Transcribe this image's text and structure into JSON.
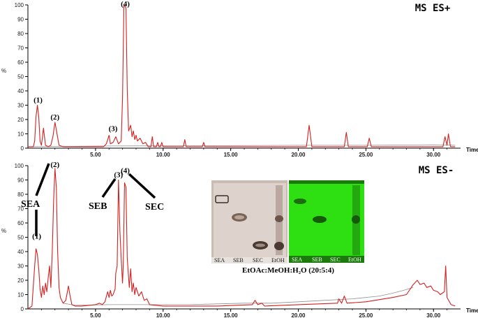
{
  "chart_data": [
    {
      "type": "line",
      "mode_label": "MS ES+",
      "xlabel": "Time",
      "ylabel": "%",
      "xlim": [
        0,
        32
      ],
      "ylim": [
        0,
        100
      ],
      "x_ticks": [
        "5.00",
        "10.00",
        "15.00",
        "20.00",
        "25.00",
        "30.00"
      ],
      "y_ticks": [
        "0",
        "10",
        "20",
        "30",
        "40",
        "50",
        "60",
        "70",
        "80",
        "90",
        "100"
      ],
      "peak_labels": [
        {
          "text": "(1)",
          "x": 0.75,
          "y": 30
        },
        {
          "text": "(2)",
          "x": 2.0,
          "y": 18
        },
        {
          "text": "(3)",
          "x": 6.3,
          "y": 10
        },
        {
          "text": "(4)",
          "x": 7.2,
          "y": 100
        }
      ],
      "series": [
        {
          "color": "#d42020",
          "points": [
            [
              0,
              1
            ],
            [
              0.4,
              1
            ],
            [
              0.5,
              5
            ],
            [
              0.6,
              22
            ],
            [
              0.7,
              30
            ],
            [
              0.8,
              22
            ],
            [
              0.9,
              5
            ],
            [
              1.0,
              2
            ],
            [
              1.15,
              14
            ],
            [
              1.3,
              2
            ],
            [
              1.5,
              1
            ],
            [
              1.7,
              2
            ],
            [
              1.85,
              8
            ],
            [
              2.0,
              18
            ],
            [
              2.15,
              10
            ],
            [
              2.3,
              2
            ],
            [
              2.6,
              1
            ],
            [
              4.0,
              1
            ],
            [
              5.6,
              1
            ],
            [
              5.8,
              3
            ],
            [
              6.0,
              9
            ],
            [
              6.1,
              3
            ],
            [
              6.3,
              4
            ],
            [
              6.5,
              8
            ],
            [
              6.7,
              3
            ],
            [
              6.9,
              5
            ],
            [
              7.0,
              35
            ],
            [
              7.1,
              100
            ],
            [
              7.25,
              98
            ],
            [
              7.35,
              40
            ],
            [
              7.45,
              12
            ],
            [
              7.6,
              16
            ],
            [
              7.7,
              8
            ],
            [
              7.8,
              12
            ],
            [
              7.9,
              6
            ],
            [
              8.0,
              9
            ],
            [
              8.1,
              5
            ],
            [
              8.3,
              7
            ],
            [
              8.5,
              3
            ],
            [
              8.7,
              4
            ],
            [
              8.9,
              1
            ],
            [
              9.1,
              1
            ],
            [
              9.2,
              8
            ],
            [
              9.3,
              1
            ],
            [
              9.5,
              1
            ],
            [
              9.6,
              4
            ],
            [
              9.7,
              1
            ],
            [
              9.8,
              1
            ],
            [
              9.9,
              4
            ],
            [
              10.0,
              1
            ],
            [
              11.5,
              1
            ],
            [
              11.6,
              6
            ],
            [
              11.7,
              1
            ],
            [
              12.9,
              1
            ],
            [
              13.0,
              4
            ],
            [
              13.1,
              1
            ],
            [
              20.6,
              1
            ],
            [
              20.8,
              16
            ],
            [
              21.0,
              1
            ],
            [
              23.4,
              1
            ],
            [
              23.55,
              11
            ],
            [
              23.7,
              1
            ],
            [
              25.1,
              1
            ],
            [
              25.25,
              7
            ],
            [
              25.4,
              1
            ],
            [
              30.7,
              1
            ],
            [
              30.85,
              8
            ],
            [
              31.0,
              2
            ],
            [
              31.1,
              10
            ],
            [
              31.25,
              1
            ],
            [
              31.6,
              1
            ]
          ]
        },
        {
          "color": "#909090",
          "points": [
            [
              0,
              1
            ],
            [
              3,
              1.2
            ],
            [
              6,
              1.5
            ],
            [
              10,
              1.6
            ],
            [
              15,
              1.8
            ],
            [
              20,
              2.0
            ],
            [
              25,
              2.0
            ],
            [
              28,
              2.2
            ],
            [
              30,
              2.4
            ],
            [
              31,
              2.2
            ],
            [
              31.6,
              2.0
            ]
          ]
        }
      ]
    },
    {
      "type": "line",
      "mode_label": "MS ES-",
      "xlabel": "Time",
      "ylabel": "%",
      "xlim": [
        0,
        32
      ],
      "ylim": [
        0,
        100
      ],
      "x_ticks": [
        "5.00",
        "10.00",
        "15.00",
        "20.00",
        "25.00",
        "30.00"
      ],
      "y_ticks": [
        "0",
        "10",
        "20",
        "30",
        "40",
        "50",
        "60",
        "70",
        "80",
        "90",
        "100"
      ],
      "peak_labels": [
        {
          "text": "(1)",
          "x": 0.65,
          "y": 47
        },
        {
          "text": "(2)",
          "x": 2.0,
          "y": 100
        },
        {
          "text": "(3)",
          "x": 6.7,
          "y": 90
        },
        {
          "text": "(4)",
          "x": 7.2,
          "y": 93
        }
      ],
      "group_labels": [
        "SEA",
        "SEB",
        "SEC"
      ],
      "series": [
        {
          "color": "#d42020",
          "points": [
            [
              0,
              0
            ],
            [
              0.3,
              2
            ],
            [
              0.5,
              30
            ],
            [
              0.6,
              42
            ],
            [
              0.7,
              38
            ],
            [
              0.8,
              28
            ],
            [
              0.9,
              14
            ],
            [
              1.0,
              8
            ],
            [
              1.1,
              16
            ],
            [
              1.2,
              10
            ],
            [
              1.3,
              18
            ],
            [
              1.4,
              12
            ],
            [
              1.5,
              22
            ],
            [
              1.6,
              30
            ],
            [
              1.7,
              15
            ],
            [
              1.8,
              40
            ],
            [
              1.9,
              75
            ],
            [
              2.0,
              98
            ],
            [
              2.1,
              85
            ],
            [
              2.2,
              40
            ],
            [
              2.3,
              15
            ],
            [
              2.4,
              8
            ],
            [
              2.6,
              4
            ],
            [
              2.8,
              6
            ],
            [
              3.0,
              16
            ],
            [
              3.1,
              10
            ],
            [
              3.25,
              3
            ],
            [
              3.5,
              2
            ],
            [
              4.0,
              2
            ],
            [
              5.0,
              3
            ],
            [
              5.3,
              4
            ],
            [
              5.5,
              3
            ],
            [
              5.7,
              5
            ],
            [
              5.9,
              12
            ],
            [
              6.0,
              8
            ],
            [
              6.1,
              13
            ],
            [
              6.2,
              9
            ],
            [
              6.3,
              10
            ],
            [
              6.45,
              14
            ],
            [
              6.5,
              25
            ],
            [
              6.6,
              30
            ],
            [
              6.7,
              90
            ],
            [
              6.8,
              55
            ],
            [
              6.9,
              35
            ],
            [
              7.0,
              18
            ],
            [
              7.05,
              30
            ],
            [
              7.15,
              88
            ],
            [
              7.25,
              85
            ],
            [
              7.35,
              35
            ],
            [
              7.5,
              15
            ],
            [
              7.6,
              28
            ],
            [
              7.7,
              12
            ],
            [
              7.8,
              18
            ],
            [
              7.9,
              10
            ],
            [
              8.0,
              15
            ],
            [
              8.2,
              9
            ],
            [
              8.4,
              12
            ],
            [
              8.6,
              6
            ],
            [
              8.8,
              7
            ],
            [
              9.0,
              3
            ],
            [
              10,
              2
            ],
            [
              14,
              2
            ],
            [
              16.6,
              3
            ],
            [
              16.8,
              6
            ],
            [
              17.0,
              3
            ],
            [
              17.3,
              4
            ],
            [
              17.5,
              2
            ],
            [
              20,
              3
            ],
            [
              22.9,
              4
            ],
            [
              23.0,
              7
            ],
            [
              23.2,
              4
            ],
            [
              23.4,
              9
            ],
            [
              23.6,
              4
            ],
            [
              25,
              5
            ],
            [
              27,
              8
            ],
            [
              28,
              10
            ],
            [
              28.5,
              17
            ],
            [
              28.8,
              20
            ],
            [
              29,
              17
            ],
            [
              29.3,
              18
            ],
            [
              29.5,
              15
            ],
            [
              29.8,
              16
            ],
            [
              30,
              13
            ],
            [
              30.3,
              12
            ],
            [
              30.5,
              10
            ],
            [
              30.8,
              12
            ],
            [
              30.9,
              30
            ],
            [
              31.0,
              8
            ],
            [
              31.3,
              3
            ],
            [
              31.6,
              2
            ]
          ]
        },
        {
          "color": "#909090",
          "points": [
            [
              2.6,
              4
            ],
            [
              3.5,
              2.5
            ],
            [
              6,
              3
            ],
            [
              9,
              3
            ],
            [
              12,
              3
            ],
            [
              14,
              3.5
            ],
            [
              16,
              4
            ],
            [
              18,
              4
            ],
            [
              20,
              5
            ],
            [
              22,
              6
            ],
            [
              24,
              7
            ],
            [
              26,
              9
            ],
            [
              27,
              11
            ],
            [
              27.8,
              13
            ],
            [
              28.5,
              15
            ]
          ]
        }
      ]
    }
  ],
  "inset": {
    "tlc_lanes_left": [
      "SEA",
      "SEB",
      "SEC",
      "EtOH"
    ],
    "tlc_lanes_right": [
      "SEA",
      "SEB",
      "SEC",
      "EtOH"
    ],
    "caption": "EtOAc:MeOH:H₂O (20:5:4)"
  }
}
